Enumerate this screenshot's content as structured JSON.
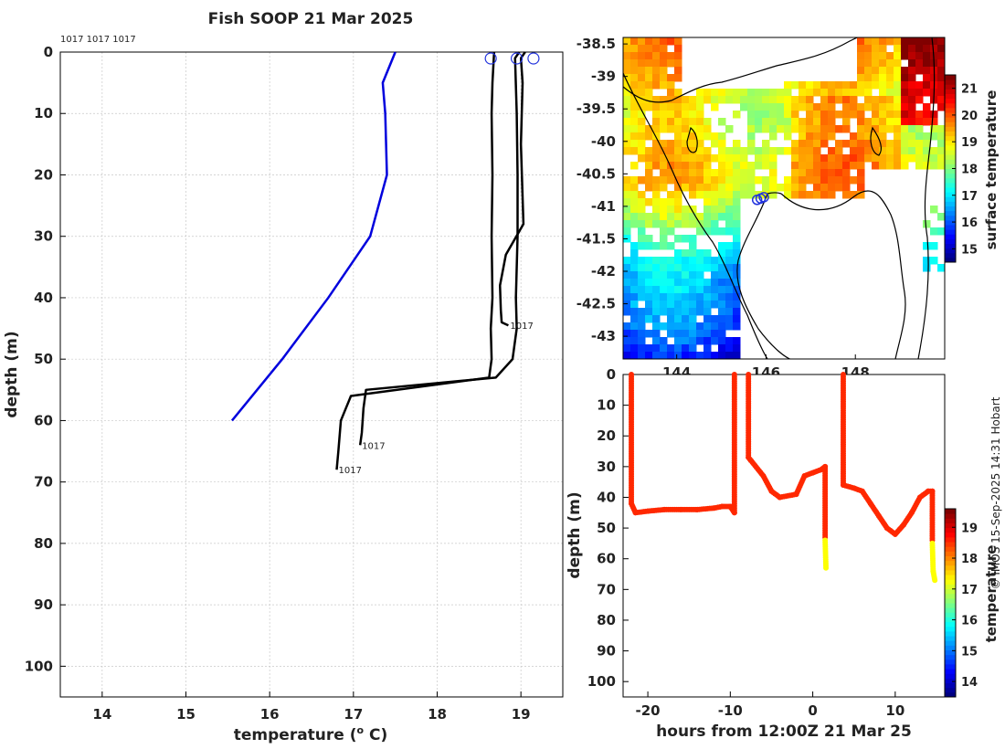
{
  "title": "Fish SOOP 21 Mar 2025",
  "copyright": "© IMOS 15-Sep-2025 14:31 Hobart",
  "chart_data": [
    {
      "name": "profiles",
      "type": "line",
      "xlabel": "temperature (",
      "xlabel_sup": "o",
      "xlabel_end": " C)",
      "ylabel": "depth (m)",
      "xlim": [
        13.5,
        19.5
      ],
      "ylim": [
        0,
        105
      ],
      "xticks": [
        14,
        15,
        16,
        17,
        18,
        19
      ],
      "yticks": [
        0,
        10,
        20,
        30,
        40,
        50,
        60,
        70,
        80,
        90,
        100
      ],
      "header_ids": "1017 1017 1017",
      "climatology": {
        "color": "#0000dd",
        "x": [
          17.5,
          17.35,
          17.38,
          17.4,
          17.2,
          16.7,
          16.15,
          15.55
        ],
        "y": [
          0,
          5,
          10,
          20,
          30,
          40,
          50,
          60
        ]
      },
      "profiles": [
        {
          "id": "1017",
          "x": [
            18.68,
            18.66,
            18.65,
            18.66,
            18.65,
            18.66,
            18.64,
            18.65,
            18.62,
            16.97,
            16.85,
            16.82,
            16.8
          ],
          "y": [
            0,
            5,
            10,
            20,
            30,
            40,
            45,
            50,
            53,
            56,
            60,
            65,
            68
          ]
        },
        {
          "id": "1017",
          "x": [
            18.98,
            18.93,
            18.95,
            18.96,
            18.96,
            18.94,
            18.95,
            18.9,
            18.7,
            17.15,
            17.12,
            17.1,
            17.08
          ],
          "y": [
            0,
            1,
            10,
            20,
            30,
            40,
            45,
            50,
            53,
            55,
            58,
            62,
            64
          ]
        },
        {
          "id": "1017",
          "x": [
            19.05,
            19.0,
            19.02,
            19.0,
            19.03,
            18.82,
            18.75,
            18.76,
            18.77,
            18.85
          ],
          "y": [
            0,
            1,
            5,
            15,
            28,
            33,
            38,
            42,
            44,
            44.5
          ]
        }
      ],
      "surface_markers": [
        18.64,
        18.95,
        19.15
      ],
      "end_labels": [
        "1017",
        "1017",
        "1017"
      ]
    },
    {
      "name": "surface-temperature-map",
      "type": "heatmap",
      "colorbar_label": "surface temperature",
      "colorbar_ticks": [
        15,
        16,
        17,
        18,
        19,
        20,
        21
      ],
      "colorbar_range": [
        14.5,
        21.5
      ],
      "yticks": [
        -38.5,
        -39,
        -39.5,
        -40,
        -40.5,
        -41,
        -41.5,
        -42,
        -42.5,
        -43
      ],
      "xticks": [
        144,
        146,
        148
      ],
      "lon_range": [
        142.8,
        150.0
      ],
      "lat_range": [
        -38.4,
        -43.35
      ],
      "track_markers": [
        {
          "lon": 145.8,
          "lat": -40.9
        },
        {
          "lon": 145.88,
          "lat": -40.88
        },
        {
          "lon": 145.95,
          "lat": -40.86
        }
      ]
    },
    {
      "name": "depth-time",
      "type": "scatter",
      "xlabel": "hours from 12:00Z 21 Mar 25",
      "ylabel": "depth (m)",
      "xlim": [
        -23,
        16
      ],
      "ylim": [
        0,
        105
      ],
      "xticks": [
        -20,
        -10,
        0,
        10
      ],
      "yticks": [
        0,
        10,
        20,
        30,
        40,
        50,
        60,
        70,
        80,
        90,
        100
      ],
      "colorbar_label": "temperature",
      "colorbar_ticks": [
        14,
        15,
        16,
        17,
        18,
        19
      ],
      "colorbar_range": [
        13.5,
        19.6
      ],
      "segments": [
        {
          "x": [
            -22,
            -22,
            -21.5,
            -20,
            -18,
            -16,
            -14,
            -12,
            -11,
            -10,
            -9.5,
            -9.5
          ],
          "y": [
            0,
            42,
            45,
            44.5,
            44,
            44,
            44,
            43.5,
            43,
            43,
            45,
            0
          ],
          "temp": 18.6
        },
        {
          "x": [
            -7.8,
            -7.8,
            -7.5,
            -6,
            -5,
            -4,
            -2,
            -1,
            0,
            1,
            1.5,
            1.5
          ],
          "y": [
            0,
            27,
            28,
            33,
            38,
            40,
            39,
            33,
            32,
            31,
            30,
            53
          ],
          "temp": 18.6
        },
        {
          "x": [
            1.5,
            1.6
          ],
          "y": [
            54,
            63
          ],
          "temp": 17.3
        },
        {
          "x": [
            3.7,
            3.7,
            5,
            6,
            7,
            8,
            9,
            10,
            11,
            12,
            13,
            14,
            14.5,
            14.5
          ],
          "y": [
            0,
            36,
            37,
            38,
            42,
            46,
            50,
            52,
            49,
            45,
            40,
            38,
            38,
            54
          ],
          "temp": 18.6
        },
        {
          "x": [
            14.5,
            14.6,
            14.8
          ],
          "y": [
            55,
            64,
            67
          ],
          "temp": 17.3
        }
      ]
    }
  ]
}
